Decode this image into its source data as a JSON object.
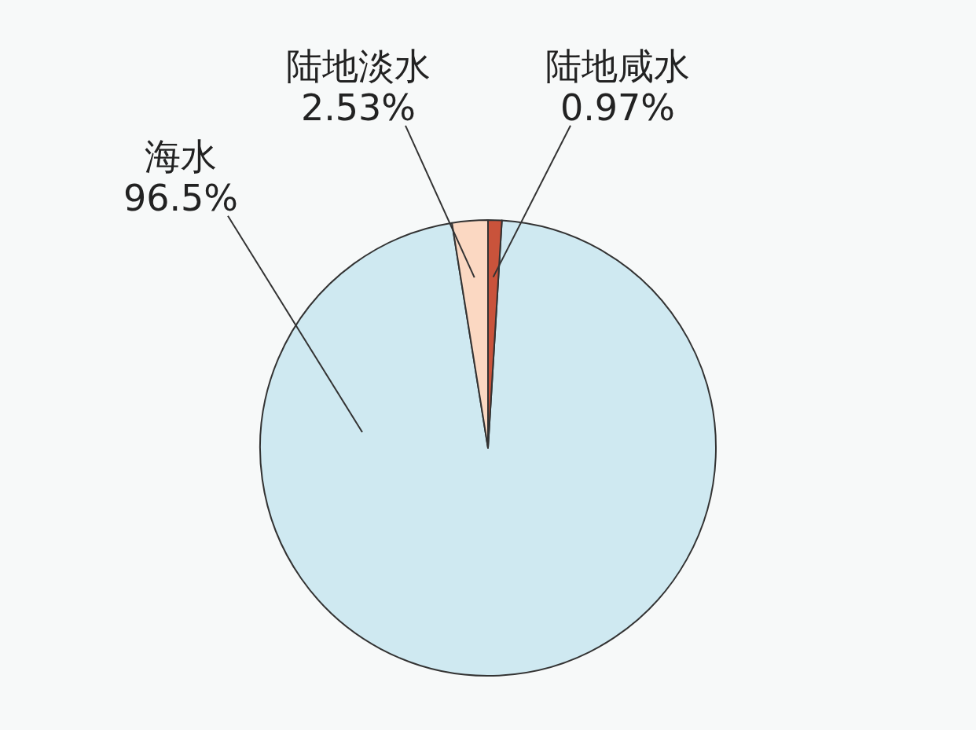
{
  "chart_data": {
    "type": "pie",
    "categories": [
      "海水",
      "陆地淡水",
      "陆地咸水"
    ],
    "values": [
      96.5,
      2.53,
      0.97
    ],
    "value_labels": [
      "96.5%",
      "2.53%",
      "0.97%"
    ],
    "colors": [
      "#cfe9f1",
      "#fbd8c2",
      "#c9533b"
    ]
  }
}
